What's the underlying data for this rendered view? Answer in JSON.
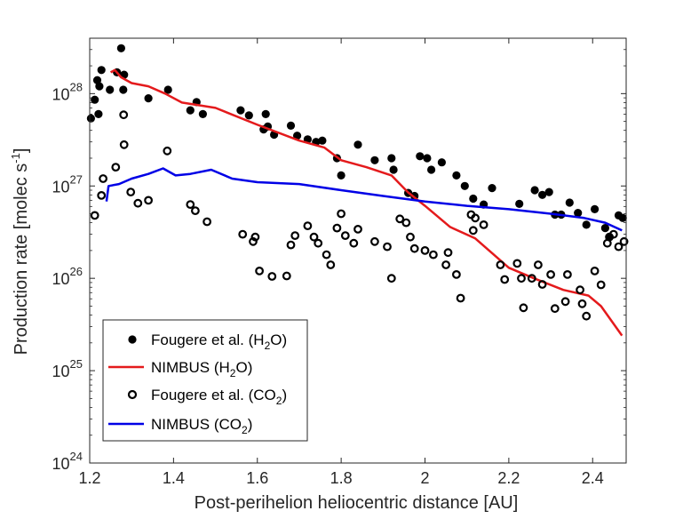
{
  "chart_data": {
    "type": "scatter",
    "title": "",
    "xlabel": "Post-perihelion heliocentric distance [AU]",
    "ylabel": "Production rate [molec s⁻¹]",
    "ylabel_parts": {
      "main": "Production rate [molec s",
      "sup": "-1",
      "end": "]"
    },
    "xlim": [
      1.2,
      2.48
    ],
    "ylim_log10": [
      24,
      28.6
    ],
    "x_ticks": [
      1.2,
      1.4,
      1.6,
      1.8,
      2.0,
      2.2,
      2.4
    ],
    "x_tick_labels": [
      "1.2",
      "1.4",
      "1.6",
      "1.8",
      "2",
      "2.2",
      "2.4"
    ],
    "y_ticks_log10": [
      24,
      25,
      26,
      27,
      28
    ],
    "y_tick_base": "10",
    "y_tick_exponents": [
      "24",
      "25",
      "26",
      "27",
      "28"
    ],
    "grid": false,
    "legend_placement": "bottom-left",
    "series": [
      {
        "name": "Fougere et al. (H2O)",
        "legend": {
          "main": "Fougere et al. (H",
          "sub": "2",
          "end": "O)"
        },
        "kind": "scatter",
        "marker": "filled",
        "color": "#000000",
        "points": [
          [
            1.203,
            5.4e+27
          ],
          [
            1.212,
            8.6e+27
          ],
          [
            1.218,
            1.4e+28
          ],
          [
            1.221,
            6e+27
          ],
          [
            1.223,
            1.2e+28
          ],
          [
            1.228,
            1.8e+28
          ],
          [
            1.248,
            1.1e+28
          ],
          [
            1.265,
            1.7e+28
          ],
          [
            1.275,
            3.1e+28
          ],
          [
            1.28,
            1.1e+28
          ],
          [
            1.282,
            1.6e+28
          ],
          [
            1.34,
            8.9e+27
          ],
          [
            1.387,
            1.1e+28
          ],
          [
            1.44,
            6.6e+27
          ],
          [
            1.455,
            8.1e+27
          ],
          [
            1.47,
            6e+27
          ],
          [
            1.56,
            6.6e+27
          ],
          [
            1.58,
            5.8e+27
          ],
          [
            1.615,
            4.1e+27
          ],
          [
            1.62,
            6e+27
          ],
          [
            1.625,
            4.4e+27
          ],
          [
            1.64,
            3.6e+27
          ],
          [
            1.68,
            4.5e+27
          ],
          [
            1.695,
            3.5e+27
          ],
          [
            1.72,
            3.2e+27
          ],
          [
            1.74,
            3e+27
          ],
          [
            1.755,
            3.1e+27
          ],
          [
            1.79,
            2e+27
          ],
          [
            1.8,
            1.3e+27
          ],
          [
            1.84,
            2.8e+27
          ],
          [
            1.88,
            1.9e+27
          ],
          [
            1.92,
            2e+27
          ],
          [
            1.925,
            1.5e+27
          ],
          [
            1.96,
            8.4e+26
          ],
          [
            1.975,
            7.8e+26
          ],
          [
            1.988,
            2.1e+27
          ],
          [
            2.005,
            2e+27
          ],
          [
            2.015,
            1.5e+27
          ],
          [
            2.04,
            1.8e+27
          ],
          [
            2.075,
            1.3e+27
          ],
          [
            2.095,
            1e+27
          ],
          [
            2.115,
            7.3e+26
          ],
          [
            2.14,
            6.3e+26
          ],
          [
            2.16,
            9.5e+26
          ],
          [
            2.225,
            6.4e+26
          ],
          [
            2.262,
            9e+26
          ],
          [
            2.28,
            8e+26
          ],
          [
            2.296,
            8.6e+26
          ],
          [
            2.31,
            4.9e+26
          ],
          [
            2.325,
            4.9e+26
          ],
          [
            2.345,
            6.6e+26
          ],
          [
            2.365,
            5.1e+26
          ],
          [
            2.385,
            3.8e+26
          ],
          [
            2.405,
            5.6e+26
          ],
          [
            2.43,
            3.5e+26
          ],
          [
            2.44,
            2.8e+26
          ],
          [
            2.462,
            4.8e+26
          ],
          [
            2.472,
            4.5e+26
          ]
        ]
      },
      {
        "name": "NIMBUS (H2O)",
        "legend": {
          "main": "NIMBUS (H",
          "sub": "2",
          "end": "O)"
        },
        "kind": "line",
        "color": "#e41a1c",
        "points": [
          [
            1.25,
            1.7e+28
          ],
          [
            1.26,
            1.8e+28
          ],
          [
            1.275,
            1.5e+28
          ],
          [
            1.3,
            1.3e+28
          ],
          [
            1.34,
            1.2e+28
          ],
          [
            1.38,
            1e+28
          ],
          [
            1.42,
            8e+27
          ],
          [
            1.5,
            7e+27
          ],
          [
            1.6,
            4.6e+27
          ],
          [
            1.7,
            3.1e+27
          ],
          [
            1.76,
            2.6e+27
          ],
          [
            1.8,
            1.9e+27
          ],
          [
            1.86,
            1.6e+27
          ],
          [
            1.92,
            1.3e+27
          ],
          [
            1.96,
            8.5e+26
          ],
          [
            2.0,
            6.1e+26
          ],
          [
            2.06,
            3.6e+26
          ],
          [
            2.12,
            2.7e+26
          ],
          [
            2.2,
            1.3e+26
          ],
          [
            2.26,
            1e+26
          ],
          [
            2.33,
            7.5e+25
          ],
          [
            2.39,
            6.5e+25
          ],
          [
            2.42,
            5e+25
          ],
          [
            2.47,
            2.4e+25
          ]
        ]
      },
      {
        "name": "Fougere et al. (CO2)",
        "legend": {
          "main": "Fougere et al. (CO",
          "sub": "2",
          "end": ")"
        },
        "kind": "scatter",
        "marker": "open",
        "color": "#000000",
        "points": [
          [
            1.212,
            4.8e+26
          ],
          [
            1.228,
            7.9e+26
          ],
          [
            1.232,
            1.2e+27
          ],
          [
            1.262,
            1.6e+27
          ],
          [
            1.281,
            5.9e+27
          ],
          [
            1.282,
            2.8e+27
          ],
          [
            1.298,
            8.6e+26
          ],
          [
            1.315,
            6.5e+26
          ],
          [
            1.34,
            7e+26
          ],
          [
            1.385,
            2.4e+27
          ],
          [
            1.44,
            6.3e+26
          ],
          [
            1.452,
            5.4e+26
          ],
          [
            1.48,
            4.1e+26
          ],
          [
            1.565,
            3e+26
          ],
          [
            1.59,
            2.5e+26
          ],
          [
            1.595,
            2.8e+26
          ],
          [
            1.605,
            1.2e+26
          ],
          [
            1.635,
            1.05e+26
          ],
          [
            1.67,
            1.06e+26
          ],
          [
            1.68,
            2.3e+26
          ],
          [
            1.69,
            2.9e+26
          ],
          [
            1.72,
            3.7e+26
          ],
          [
            1.735,
            2.8e+26
          ],
          [
            1.745,
            2.4e+26
          ],
          [
            1.765,
            1.8e+26
          ],
          [
            1.775,
            1.4e+26
          ],
          [
            1.79,
            3.5e+26
          ],
          [
            1.8,
            5e+26
          ],
          [
            1.81,
            2.9e+26
          ],
          [
            1.83,
            2.4e+26
          ],
          [
            1.84,
            3.4e+26
          ],
          [
            1.88,
            2.5e+26
          ],
          [
            1.91,
            2.2e+26
          ],
          [
            1.92,
            1e+26
          ],
          [
            1.94,
            4.4e+26
          ],
          [
            1.955,
            4e+26
          ],
          [
            1.965,
            2.8e+26
          ],
          [
            1.975,
            2.1e+26
          ],
          [
            2.0,
            2e+26
          ],
          [
            2.02,
            1.8e+26
          ],
          [
            2.05,
            1.4e+26
          ],
          [
            2.055,
            1.9e+26
          ],
          [
            2.075,
            1.1e+26
          ],
          [
            2.085,
            6.1e+25
          ],
          [
            2.11,
            4.9e+26
          ],
          [
            2.115,
            3.3e+26
          ],
          [
            2.12,
            4.5e+26
          ],
          [
            2.14,
            3.8e+26
          ],
          [
            2.18,
            1.4e+26
          ],
          [
            2.19,
            9.7e+25
          ],
          [
            2.22,
            1.45e+26
          ],
          [
            2.23,
            1e+26
          ],
          [
            2.235,
            4.8e+25
          ],
          [
            2.255,
            1e+26
          ],
          [
            2.27,
            1.4e+26
          ],
          [
            2.28,
            8.6e+25
          ],
          [
            2.3,
            1.1e+26
          ],
          [
            2.31,
            4.7e+25
          ],
          [
            2.335,
            5.6e+25
          ],
          [
            2.34,
            1.1e+26
          ],
          [
            2.37,
            7.5e+25
          ],
          [
            2.375,
            5.3e+25
          ],
          [
            2.385,
            3.9e+25
          ],
          [
            2.405,
            1.2e+26
          ],
          [
            2.42,
            8.5e+25
          ],
          [
            2.435,
            2.4e+26
          ],
          [
            2.44,
            2.8e+26
          ],
          [
            2.45,
            3e+26
          ],
          [
            2.462,
            2.2e+26
          ],
          [
            2.475,
            2.5e+26
          ]
        ]
      },
      {
        "name": "NIMBUS (CO2)",
        "legend": {
          "main": "NIMBUS (CO",
          "sub": "2",
          "end": ")"
        },
        "kind": "line",
        "color": "#0000e6",
        "points": [
          [
            1.24,
            6.8e+26
          ],
          [
            1.245,
            1e+27
          ],
          [
            1.27,
            1.05e+27
          ],
          [
            1.3,
            1.2e+27
          ],
          [
            1.34,
            1.35e+27
          ],
          [
            1.375,
            1.55e+27
          ],
          [
            1.405,
            1.3e+27
          ],
          [
            1.44,
            1.35e+27
          ],
          [
            1.49,
            1.5e+27
          ],
          [
            1.54,
            1.2e+27
          ],
          [
            1.6,
            1.1e+27
          ],
          [
            1.7,
            1.05e+27
          ],
          [
            1.8,
            9e+26
          ],
          [
            1.9,
            7.8e+26
          ],
          [
            2.0,
            6.8e+26
          ],
          [
            2.1,
            6.1e+26
          ],
          [
            2.2,
            5.6e+26
          ],
          [
            2.3,
            5e+26
          ],
          [
            2.38,
            4.5e+26
          ],
          [
            2.43,
            4e+26
          ],
          [
            2.47,
            3.3e+26
          ]
        ]
      }
    ]
  }
}
